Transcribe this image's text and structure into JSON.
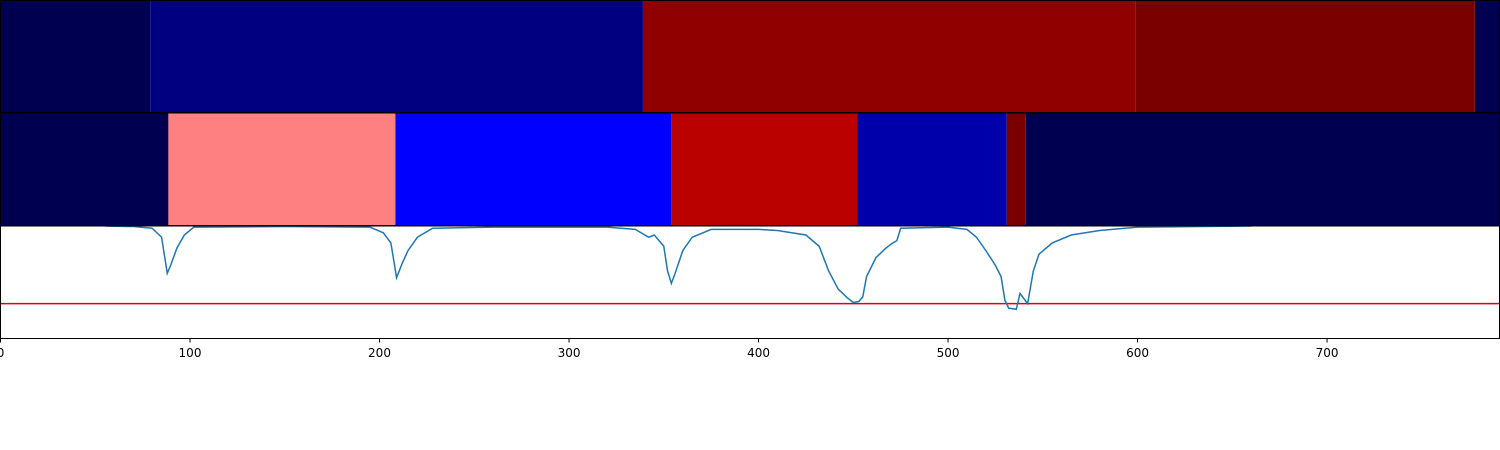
{
  "chart_data": [
    {
      "type": "segments",
      "edges": [
        0,
        79,
        339,
        599,
        778,
        791
      ],
      "colors": [
        "#000050",
        "#000080",
        "#900000",
        "#7a0000",
        "#000050"
      ],
      "xlim": [
        0,
        791
      ]
    },
    {
      "type": "segments",
      "edges": [
        0,
        88.6,
        208.4,
        354,
        452,
        531,
        541,
        791
      ],
      "colors": [
        "#000050",
        "#ff8080",
        "#0000ff",
        "#bb0000",
        "#0000aa",
        "#7a0000",
        "#000050"
      ],
      "xlim": [
        0,
        791
      ]
    },
    {
      "type": "line",
      "x": [
        55,
        70,
        80,
        85,
        88,
        90,
        93,
        97,
        102,
        150,
        195,
        202,
        206,
        209,
        212,
        215,
        220,
        228,
        260,
        320,
        335,
        342,
        345,
        350,
        352,
        354,
        356,
        360,
        365,
        375,
        400,
        410,
        425,
        432,
        437,
        442,
        447,
        450,
        453,
        455,
        457,
        462,
        467,
        470,
        473,
        475,
        500,
        510,
        515,
        520,
        525,
        528,
        530,
        532,
        536,
        538,
        542,
        545,
        548,
        555,
        565,
        580,
        600,
        660
      ],
      "values": [
        1.0,
        0.995,
        0.98,
        0.9,
        0.58,
        0.66,
        0.8,
        0.92,
        0.99,
        0.995,
        0.99,
        0.94,
        0.85,
        0.54,
        0.67,
        0.78,
        0.9,
        0.98,
        0.99,
        0.99,
        0.97,
        0.9,
        0.92,
        0.82,
        0.6,
        0.49,
        0.58,
        0.78,
        0.9,
        0.97,
        0.97,
        0.96,
        0.92,
        0.82,
        0.6,
        0.44,
        0.36,
        0.32,
        0.33,
        0.37,
        0.55,
        0.72,
        0.8,
        0.84,
        0.87,
        0.98,
        0.99,
        0.97,
        0.9,
        0.78,
        0.65,
        0.55,
        0.34,
        0.27,
        0.26,
        0.4,
        0.31,
        0.6,
        0.75,
        0.85,
        0.92,
        0.96,
        0.99,
        1.0
      ],
      "color": "#1f77b4",
      "hlines": [
        {
          "value": 0.31,
          "color": "#e00000"
        }
      ],
      "xlim": [
        0,
        791
      ],
      "ylim": [
        0,
        1
      ],
      "xticks": [
        0,
        100,
        200,
        300,
        400,
        500,
        600,
        700
      ]
    }
  ]
}
